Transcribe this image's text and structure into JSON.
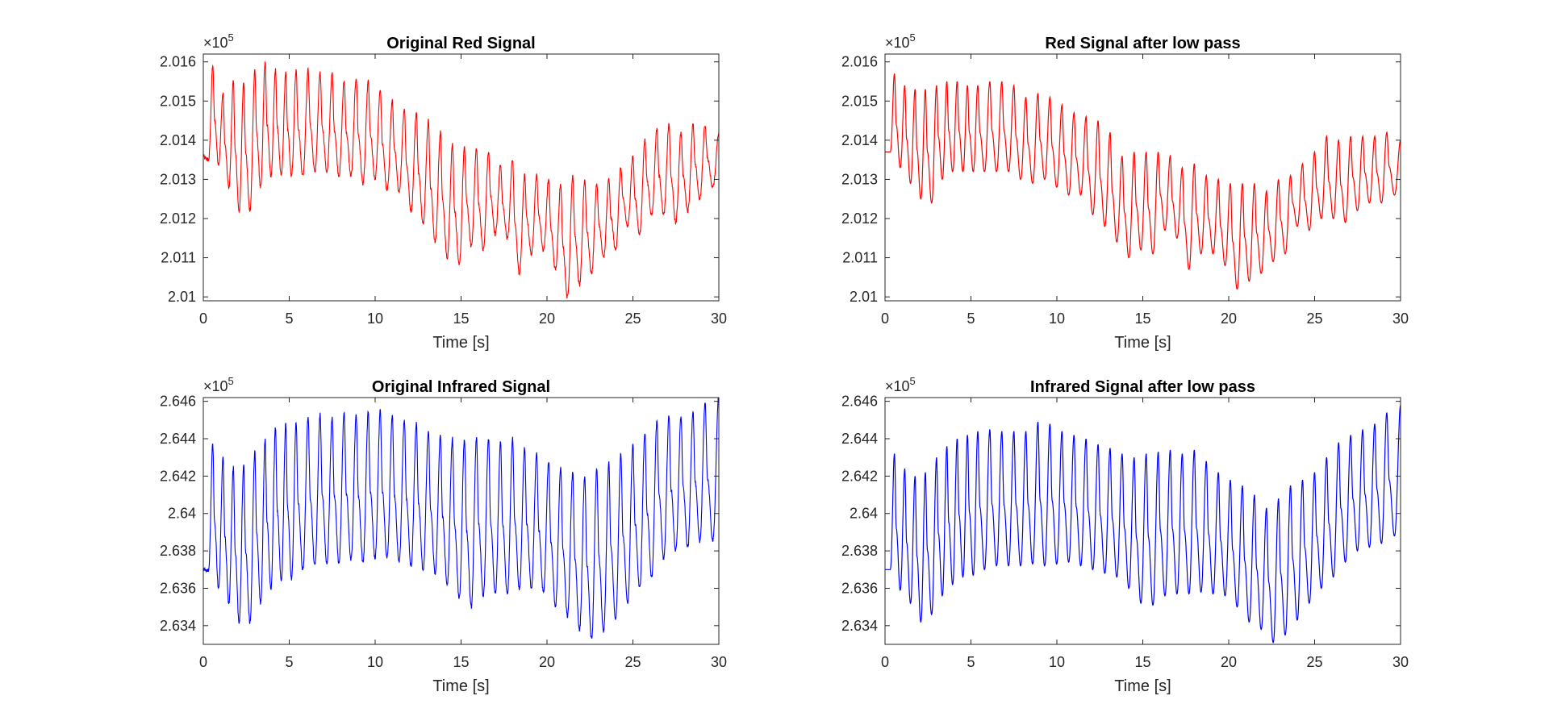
{
  "chart_data": [
    {
      "type": "line",
      "title": "Original Red Signal",
      "xlabel": "Time [s]",
      "ylabel": "",
      "exponent": {
        "base": "×10",
        "power": "5"
      },
      "xlim": [
        0,
        30
      ],
      "ylim": [
        2.0099,
        2.0162
      ],
      "xticks": [
        "0",
        "5",
        "10",
        "15",
        "20",
        "25",
        "30"
      ],
      "yticks": [
        "2.01",
        "2.011",
        "2.012",
        "2.013",
        "2.014",
        "2.015",
        "2.016"
      ],
      "color": "#ff0000",
      "noisy": true,
      "series": [
        {
          "x": [
            0,
            0.55,
            1.15,
            1.75,
            2.35,
            3.0,
            3.6,
            4.2,
            4.8,
            5.4,
            6.1,
            6.8,
            7.5,
            8.2,
            8.9,
            9.6,
            10.3,
            11.0,
            11.7,
            12.4,
            13.1,
            13.8,
            14.5,
            15.2,
            15.9,
            16.6,
            17.3,
            18.0,
            18.7,
            19.4,
            20.1,
            20.8,
            21.5,
            22.2,
            22.9,
            23.6,
            24.3,
            25.0,
            25.7,
            26.4,
            27.1,
            27.8,
            28.5,
            29.2,
            30.0
          ],
          "values": [
            2.0136,
            2.0159,
            2.0152,
            2.0155,
            2.0155,
            2.0158,
            2.016,
            2.0158,
            2.0157,
            2.0158,
            2.0158,
            2.0157,
            2.0157,
            2.0155,
            2.0156,
            2.0155,
            2.0153,
            2.015,
            2.0148,
            2.0147,
            2.0145,
            2.0142,
            2.0139,
            2.0138,
            2.0138,
            2.0137,
            2.0134,
            2.0135,
            2.0131,
            2.0131,
            2.013,
            2.0129,
            2.0131,
            2.013,
            2.0129,
            2.013,
            2.0133,
            2.0136,
            2.014,
            2.0143,
            2.0144,
            2.0142,
            2.0144,
            2.0144,
            2.0142
          ],
          "mins": [
            2.0135,
            2.0134,
            2.0128,
            2.0122,
            2.0122,
            2.0128,
            2.0131,
            2.0131,
            2.0131,
            2.0131,
            2.0132,
            2.0132,
            2.0131,
            2.0131,
            2.0129,
            2.013,
            2.0127,
            2.0127,
            2.0122,
            2.0119,
            2.0114,
            2.011,
            2.0108,
            2.0113,
            2.0112,
            2.0116,
            2.0115,
            2.0106,
            2.0111,
            2.0112,
            2.0107,
            2.01,
            2.0103,
            2.0106,
            2.011,
            2.0112,
            2.0118,
            2.0116,
            2.0121,
            2.0121,
            2.0119,
            2.0122,
            2.0125,
            2.0128,
            2.0128
          ]
        }
      ]
    },
    {
      "type": "line",
      "title": "Red Signal after low pass",
      "xlabel": "Time [s]",
      "ylabel": "",
      "exponent": {
        "base": "×10",
        "power": "5"
      },
      "xlim": [
        0,
        30
      ],
      "ylim": [
        2.0099,
        2.0162
      ],
      "xticks": [
        "0",
        "5",
        "10",
        "15",
        "20",
        "25",
        "30"
      ],
      "yticks": [
        "2.01",
        "2.011",
        "2.012",
        "2.013",
        "2.014",
        "2.015",
        "2.016"
      ],
      "color": "#ff0000",
      "noisy": false,
      "series": [
        {
          "x": [
            0,
            0.55,
            1.15,
            1.75,
            2.35,
            3.0,
            3.6,
            4.2,
            4.8,
            5.4,
            6.1,
            6.8,
            7.5,
            8.2,
            8.9,
            9.6,
            10.3,
            11.0,
            11.7,
            12.4,
            13.1,
            13.8,
            14.5,
            15.2,
            15.9,
            16.6,
            17.3,
            18.0,
            18.7,
            19.4,
            20.1,
            20.8,
            21.5,
            22.2,
            22.9,
            23.6,
            24.3,
            25.0,
            25.7,
            26.4,
            27.1,
            27.8,
            28.5,
            29.2,
            30.0
          ],
          "values": [
            2.0137,
            2.0157,
            2.0154,
            2.0153,
            2.0153,
            2.0154,
            2.0155,
            2.0155,
            2.0154,
            2.0154,
            2.0155,
            2.0155,
            2.0154,
            2.0151,
            2.0152,
            2.0151,
            2.0149,
            2.0147,
            2.0146,
            2.0145,
            2.0142,
            2.0136,
            2.0137,
            2.0137,
            2.0137,
            2.0136,
            2.0133,
            2.0134,
            2.0131,
            2.013,
            2.0129,
            2.0129,
            2.0129,
            2.0127,
            2.013,
            2.0131,
            2.0134,
            2.0137,
            2.0141,
            2.014,
            2.0141,
            2.0141,
            2.0141,
            2.0142,
            2.014
          ],
          "mins": [
            2.0137,
            2.0133,
            2.0129,
            2.0125,
            2.0124,
            2.013,
            2.0132,
            2.0132,
            2.0132,
            2.0132,
            2.0132,
            2.0132,
            2.013,
            2.0129,
            2.013,
            2.0128,
            2.0126,
            2.0126,
            2.0121,
            2.0118,
            2.0114,
            2.011,
            2.0112,
            2.0111,
            2.0117,
            2.0115,
            2.0107,
            2.0111,
            2.0111,
            2.0108,
            2.0102,
            2.0104,
            2.0106,
            2.0109,
            2.0111,
            2.0118,
            2.0117,
            2.012,
            2.012,
            2.0119,
            2.0122,
            2.0124,
            2.0124,
            2.0126,
            2.0126
          ]
        }
      ]
    },
    {
      "type": "line",
      "title": "Original Infrared Signal",
      "xlabel": "Time [s]",
      "ylabel": "",
      "exponent": {
        "base": "×10",
        "power": "5"
      },
      "xlim": [
        0,
        30
      ],
      "ylim": [
        2.633,
        2.6462
      ],
      "xticks": [
        "0",
        "5",
        "10",
        "15",
        "20",
        "25",
        "30"
      ],
      "yticks": [
        "2.634",
        "2.636",
        "2.638",
        "2.64",
        "2.642",
        "2.644",
        "2.646"
      ],
      "color": "#0000ff",
      "noisy": true,
      "series": [
        {
          "x": [
            0,
            0.55,
            1.15,
            1.75,
            2.35,
            3.0,
            3.6,
            4.2,
            4.8,
            5.4,
            6.1,
            6.8,
            7.5,
            8.2,
            8.9,
            9.6,
            10.3,
            11.0,
            11.7,
            12.4,
            13.1,
            13.8,
            14.5,
            15.2,
            15.9,
            16.6,
            17.3,
            18.0,
            18.7,
            19.4,
            20.1,
            20.8,
            21.5,
            22.2,
            22.9,
            23.6,
            24.3,
            25.0,
            25.7,
            26.4,
            27.1,
            27.8,
            28.5,
            29.2,
            30.0
          ],
          "values": [
            2.637,
            2.6437,
            2.643,
            2.6425,
            2.6426,
            2.6433,
            2.644,
            2.6446,
            2.6448,
            2.6448,
            2.6452,
            2.6453,
            2.6452,
            2.6454,
            2.6453,
            2.6454,
            2.6455,
            2.6452,
            2.645,
            2.6448,
            2.6444,
            2.6442,
            2.644,
            2.644,
            2.6441,
            2.644,
            2.6438,
            2.644,
            2.6435,
            2.6432,
            2.6428,
            2.6425,
            2.6422,
            2.642,
            2.6424,
            2.6427,
            2.6432,
            2.6437,
            2.6443,
            2.645,
            2.6452,
            2.6452,
            2.6455,
            2.6459,
            2.6464
          ],
          "mins": [
            2.637,
            2.636,
            2.6352,
            2.6342,
            2.6342,
            2.6352,
            2.636,
            2.6364,
            2.6365,
            2.637,
            2.6372,
            2.6373,
            2.6374,
            2.6375,
            2.6374,
            2.6376,
            2.6376,
            2.6374,
            2.6372,
            2.637,
            2.6368,
            2.6362,
            2.6355,
            2.635,
            2.6356,
            2.6357,
            2.6357,
            2.636,
            2.636,
            2.6358,
            2.635,
            2.6345,
            2.6338,
            2.6333,
            2.6337,
            2.6344,
            2.6352,
            2.636,
            2.6366,
            2.6376,
            2.638,
            2.6382,
            2.6385,
            2.6386,
            2.639
          ]
        }
      ]
    },
    {
      "type": "line",
      "title": "Infrared Signal after low pass",
      "xlabel": "Time [s]",
      "ylabel": "",
      "exponent": {
        "base": "×10",
        "power": "5"
      },
      "xlim": [
        0,
        30
      ],
      "ylim": [
        2.633,
        2.6462
      ],
      "xticks": [
        "0",
        "5",
        "10",
        "15",
        "20",
        "25",
        "30"
      ],
      "yticks": [
        "2.634",
        "2.636",
        "2.638",
        "2.64",
        "2.642",
        "2.644",
        "2.646"
      ],
      "color": "#0000ff",
      "noisy": false,
      "series": [
        {
          "x": [
            0,
            0.55,
            1.15,
            1.75,
            2.35,
            3.0,
            3.6,
            4.2,
            4.8,
            5.4,
            6.1,
            6.8,
            7.5,
            8.2,
            8.9,
            9.6,
            10.3,
            11.0,
            11.7,
            12.4,
            13.1,
            13.8,
            14.5,
            15.2,
            15.9,
            16.6,
            17.3,
            18.0,
            18.7,
            19.4,
            20.1,
            20.8,
            21.5,
            22.2,
            22.9,
            23.6,
            24.3,
            25.0,
            25.7,
            26.4,
            27.1,
            27.8,
            28.5,
            29.2,
            30.0
          ],
          "values": [
            2.637,
            2.6432,
            2.6424,
            2.642,
            2.6422,
            2.643,
            2.6436,
            2.644,
            2.6442,
            2.6444,
            2.6445,
            2.6444,
            2.6444,
            2.6444,
            2.6449,
            2.6448,
            2.6444,
            2.6442,
            2.644,
            2.6437,
            2.6435,
            2.6432,
            2.643,
            2.6432,
            2.6433,
            2.6434,
            2.6432,
            2.6434,
            2.6428,
            2.6422,
            2.6418,
            2.6415,
            2.641,
            2.6403,
            2.6408,
            2.6415,
            2.6418,
            2.6422,
            2.643,
            2.6438,
            2.6442,
            2.6445,
            2.6448,
            2.6454,
            2.6458
          ],
          "mins": [
            2.637,
            2.6359,
            2.6352,
            2.6342,
            2.6346,
            2.6356,
            2.6362,
            2.6366,
            2.6367,
            2.637,
            2.6372,
            2.6372,
            2.6372,
            2.6373,
            2.6372,
            2.6373,
            2.6374,
            2.6372,
            2.637,
            2.6368,
            2.6366,
            2.636,
            2.6352,
            2.6351,
            2.6356,
            2.6357,
            2.6357,
            2.6358,
            2.6357,
            2.6356,
            2.635,
            2.6342,
            2.6338,
            2.6331,
            2.6335,
            2.6343,
            2.6352,
            2.636,
            2.6366,
            2.6374,
            2.638,
            2.6382,
            2.6384,
            2.6388,
            2.639
          ]
        }
      ]
    }
  ]
}
